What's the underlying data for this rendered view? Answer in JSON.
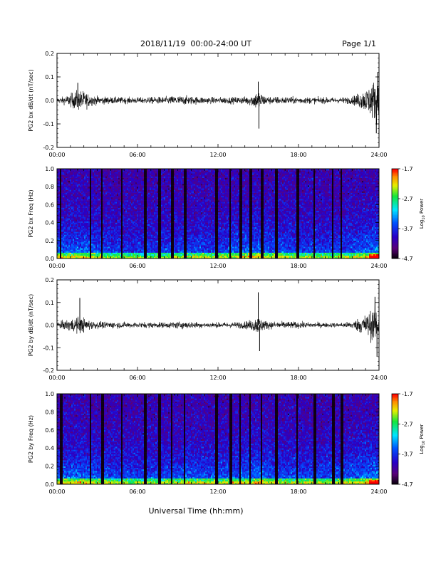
{
  "header": {
    "date_range": "2018/11/19  00:00-24:00 UT",
    "page": "Page 1/1"
  },
  "footer": {
    "xlabel": "Universal Time (hh:mm)"
  },
  "chart_data": [
    {
      "type": "line",
      "ylabel": "PG2 bx dB/dt (nT/sec)",
      "xticks": [
        "00:00",
        "06:00",
        "12:00",
        "18:00",
        "24:00"
      ],
      "xlim": [
        0,
        24
      ],
      "yticks": [
        "0.2",
        "0.1",
        "0.0",
        "-0.1",
        "-0.2"
      ],
      "ylim": [
        -0.2,
        0.2
      ],
      "envelope": {
        "x": [
          0,
          0.5,
          1,
          1.5,
          2,
          2.5,
          3,
          4,
          5,
          6,
          7,
          8,
          9,
          10,
          11,
          12,
          13,
          14,
          14.5,
          15,
          15.5,
          16,
          17,
          18,
          19,
          20,
          21,
          22,
          22.5,
          23,
          23.5,
          24
        ],
        "amplitude": [
          0.015,
          0.02,
          0.035,
          0.055,
          0.05,
          0.03,
          0.022,
          0.018,
          0.017,
          0.016,
          0.018,
          0.02,
          0.025,
          0.022,
          0.018,
          0.017,
          0.018,
          0.02,
          0.03,
          0.055,
          0.025,
          0.02,
          0.02,
          0.018,
          0.017,
          0.016,
          0.015,
          0.02,
          0.04,
          0.06,
          0.1,
          0.12
        ]
      },
      "spikes": [
        {
          "x": 1.55,
          "y": 0.075
        },
        {
          "x": 15.05,
          "y": -0.12
        },
        {
          "x": 15.0,
          "y": 0.08
        },
        {
          "x": 23.8,
          "y": -0.14
        },
        {
          "x": 23.9,
          "y": 0.12
        }
      ],
      "color": "#000000"
    },
    {
      "type": "heatmap",
      "ylabel": "PG2 bx Freq (Hz)",
      "xticks": [
        "00:00",
        "06:00",
        "12:00",
        "18:00",
        "24:00"
      ],
      "xlim": [
        0,
        24
      ],
      "yticks": [
        "1.0",
        "0.8",
        "0.6",
        "0.4",
        "0.2",
        "0.0"
      ],
      "ylim": [
        0,
        1.0
      ],
      "colorbar": {
        "label": "Log10 Power",
        "label_base": "Log",
        "label_sub": "10",
        "label_rest": " Power",
        "ticks": [
          "-1.7",
          "-2.7",
          "-3.7",
          "-4.7"
        ],
        "range": [
          -4.7,
          -1.7
        ]
      },
      "gap_times": [
        0.25,
        2.4,
        3.3,
        4.8,
        6.5,
        7.5,
        8.5,
        9.5,
        11.8,
        12.9,
        13.6,
        14.3,
        15.2,
        16.2,
        17.8,
        19.1,
        20.5,
        21.1
      ],
      "intensity_profile": {
        "x": [
          0,
          2,
          4,
          6,
          8,
          10,
          12,
          14,
          15,
          16,
          18,
          20,
          22,
          24
        ],
        "level": [
          0.45,
          0.5,
          0.35,
          0.3,
          0.35,
          0.4,
          0.35,
          0.5,
          0.55,
          0.45,
          0.4,
          0.35,
          0.4,
          0.6
        ]
      }
    },
    {
      "type": "line",
      "ylabel": "PG2 by dB/dt (nT/sec)",
      "xticks": [
        "00:00",
        "06:00",
        "12:00",
        "18:00",
        "24:00"
      ],
      "xlim": [
        0,
        24
      ],
      "yticks": [
        "0.2",
        "0.1",
        "0.0",
        "-0.1",
        "-0.2"
      ],
      "ylim": [
        -0.2,
        0.2
      ],
      "envelope": {
        "x": [
          0,
          0.5,
          1,
          1.5,
          2,
          2.5,
          3,
          4,
          5,
          6,
          7,
          8,
          9,
          10,
          11,
          12,
          13,
          14,
          14.5,
          15,
          15.5,
          16,
          17,
          18,
          19,
          20,
          21,
          22,
          22.5,
          23,
          23.5,
          24
        ],
        "amplitude": [
          0.018,
          0.025,
          0.035,
          0.045,
          0.04,
          0.025,
          0.02,
          0.018,
          0.016,
          0.015,
          0.016,
          0.015,
          0.02,
          0.018,
          0.015,
          0.014,
          0.016,
          0.02,
          0.03,
          0.05,
          0.025,
          0.02,
          0.02,
          0.018,
          0.015,
          0.013,
          0.012,
          0.02,
          0.04,
          0.06,
          0.09,
          0.1
        ]
      },
      "spikes": [
        {
          "x": 1.7,
          "y": 0.12
        },
        {
          "x": 15.0,
          "y": 0.145
        },
        {
          "x": 15.1,
          "y": -0.115
        },
        {
          "x": 23.7,
          "y": 0.125
        },
        {
          "x": 23.85,
          "y": -0.14
        }
      ],
      "color": "#000000"
    },
    {
      "type": "heatmap",
      "ylabel": "PG2 by Freq (Hz)",
      "xticks": [
        "00:00",
        "06:00",
        "12:00",
        "18:00",
        "24:00"
      ],
      "xlim": [
        0,
        24
      ],
      "yticks": [
        "1.0",
        "0.8",
        "0.6",
        "0.4",
        "0.2",
        "0.0"
      ],
      "ylim": [
        0,
        1.0
      ],
      "colorbar": {
        "label": "Log10 Power",
        "label_base": "Log",
        "label_sub": "10",
        "label_rest": " Power",
        "ticks": [
          "-1.7",
          "-2.7",
          "-3.7",
          "-4.7"
        ],
        "range": [
          -4.7,
          -1.7
        ]
      },
      "gap_times": [
        0.25,
        2.4,
        3.3,
        4.8,
        6.5,
        7.5,
        8.5,
        9.5,
        11.8,
        12.9,
        13.6,
        14.3,
        15.2,
        16.2,
        17.8,
        19.1,
        20.5,
        21.1
      ],
      "intensity_profile": {
        "x": [
          0,
          2,
          4,
          6,
          8,
          10,
          12,
          14,
          15,
          16,
          18,
          20,
          22,
          24
        ],
        "level": [
          0.5,
          0.5,
          0.4,
          0.35,
          0.4,
          0.45,
          0.4,
          0.5,
          0.55,
          0.45,
          0.4,
          0.4,
          0.45,
          0.6
        ]
      }
    }
  ]
}
